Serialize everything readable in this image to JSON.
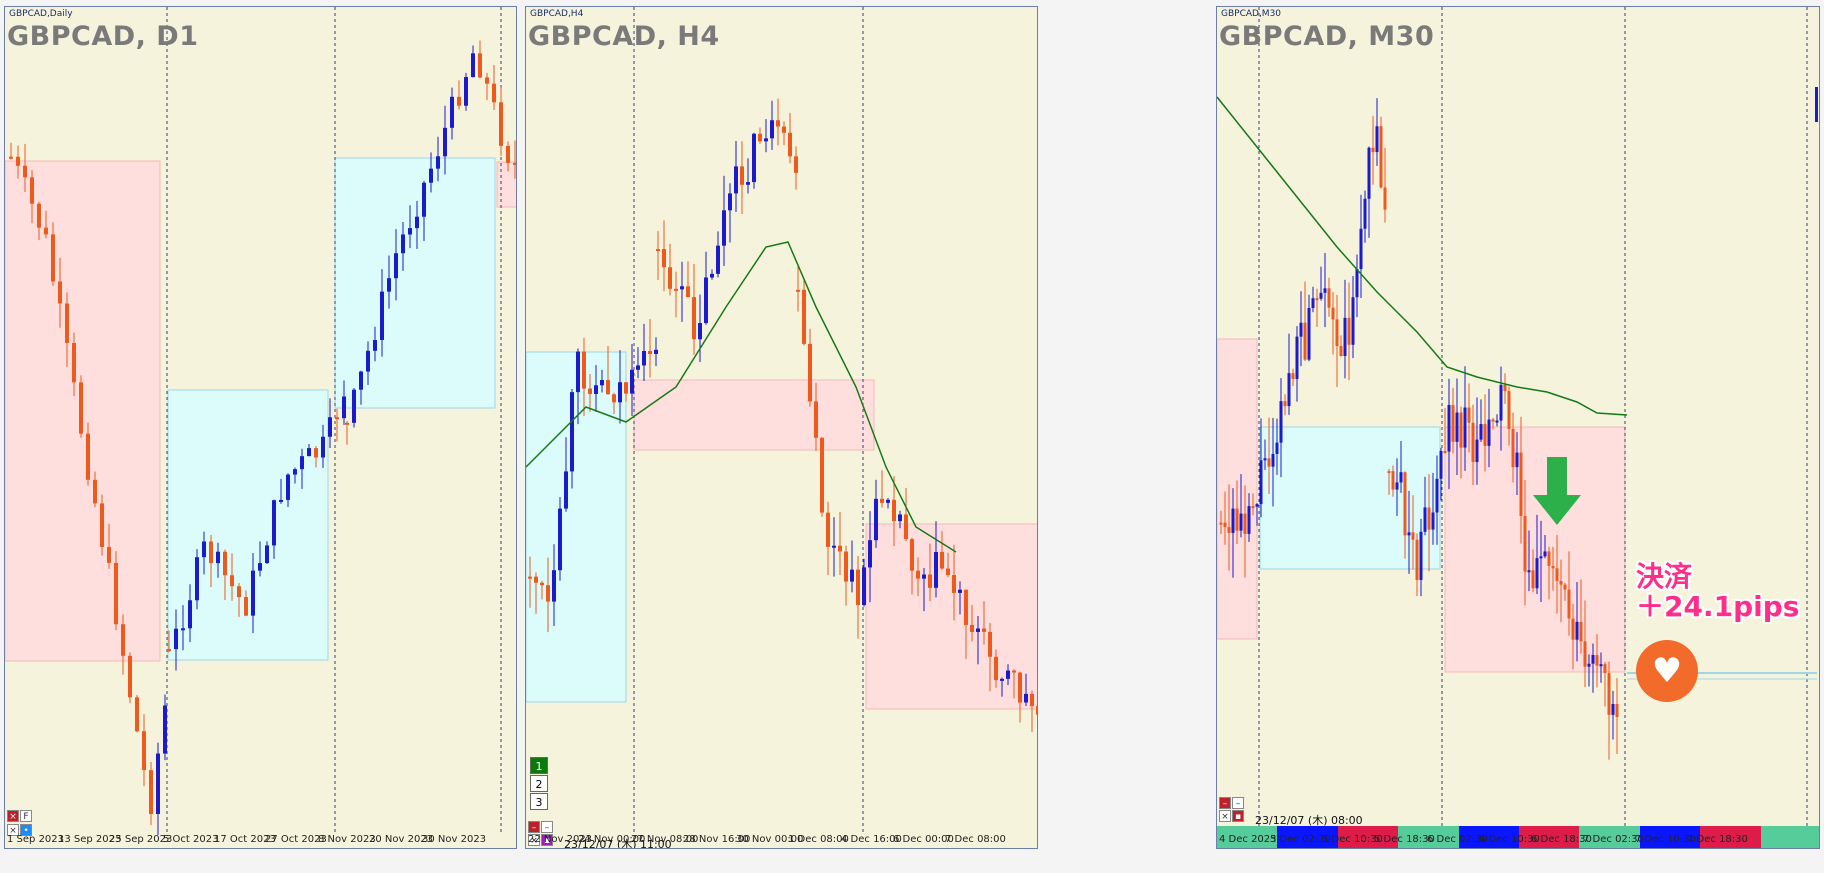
{
  "panels": [
    {
      "id": "d1",
      "window_title": "GBPCAD,Daily",
      "chart_title": "GBPCAD, D1",
      "x_labels": [
        "1 Sep 2023",
        "13 Sep 2023",
        "25 Sep 2023",
        "5 Oct 2023",
        "17 Oct 2023",
        "27 Oct 2023",
        "8 Nov 2023",
        "20 Nov 2023",
        "30 Nov 2023"
      ],
      "timestamp": ""
    },
    {
      "id": "h4",
      "window_title": "GBPCAD,H4",
      "chart_title": "GBPCAD, H4",
      "x_labels": [
        "22 Nov 2023",
        "24 Nov 00:00",
        "27 Nov 08:00",
        "28 Nov 16:00",
        "30 Nov 00:00",
        "1 Dec 08:00",
        "4 Dec 16:00",
        "6 Dec 00:00",
        "7 Dec 08:00"
      ],
      "timestamp": "23/12/07 (木) 11:00",
      "buttons": [
        "1",
        "2",
        "3"
      ]
    },
    {
      "id": "m30",
      "window_title": "GBPCAD,M30",
      "chart_title": "GBPCAD, M30",
      "x_labels": [
        "4 Dec 2023",
        "5 Dec 02:30",
        "5 Dec 10:30",
        "5 Dec 18:30",
        "6 Dec 02:30",
        "6 Dec 10:30",
        "6 Dec 18:30",
        "7 Dec 02:30",
        "7 Dec 10:30",
        "7 Dec 18:30"
      ],
      "timestamp": "23/12/07 (木) 08:00"
    }
  ],
  "annotation": {
    "line1": "決済",
    "line2": "＋24.1pips",
    "heart_icon": "broken-heart-icon"
  },
  "colors": {
    "background": "#f6f3dd",
    "bull": "#1b1bcc",
    "bear": "#ee5a1e",
    "ma": "#157a15",
    "buy_zone": "#dcfbfb",
    "sell_zone": "#ffdede",
    "down_arrow": "#2bb04a",
    "annotation": "#ff2e8a"
  },
  "strip_colors": [
    "#55cc99",
    "#0a16ff",
    "#dd1c4a",
    "#55cc99",
    "#0a16ff",
    "#dd1c4a",
    "#55cc99",
    "#0a16ff",
    "#dd1c4a",
    "#55cc99"
  ]
}
